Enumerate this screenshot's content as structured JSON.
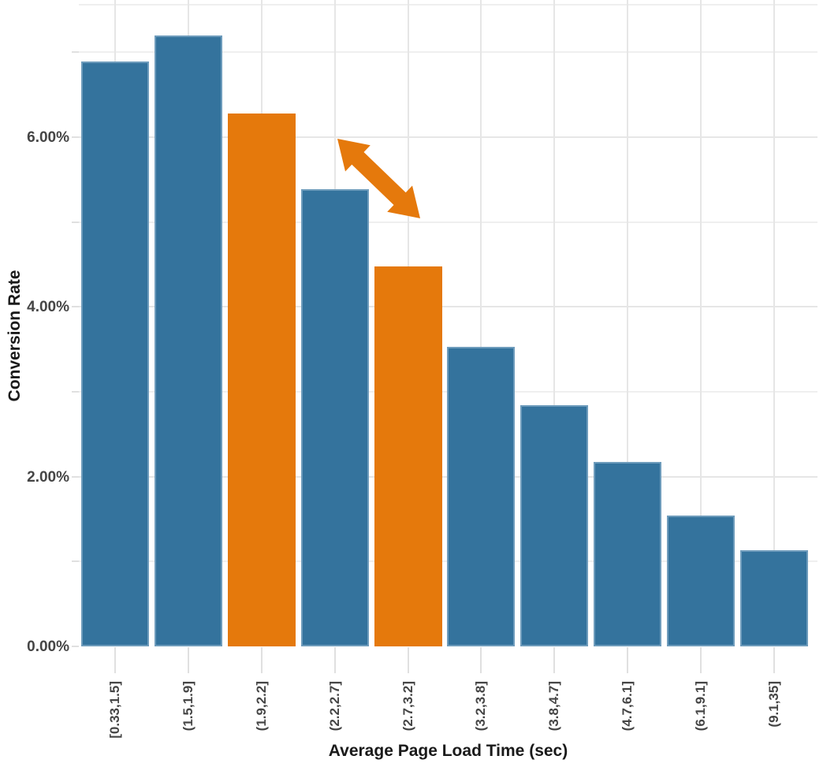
{
  "chart_data": {
    "type": "bar",
    "title": "",
    "xlabel": "Average Page Load Time (sec)",
    "ylabel": "Conversion Rate",
    "categories": [
      "[0.33,1.5]",
      "(1.5,1.9]",
      "(1.9,2.2]",
      "(2.2,2.7]",
      "(2.7,3.2]",
      "(3.2,3.8]",
      "(3.8,4.7]",
      "(4.7,6.1]",
      "(6.1,9.1]",
      "(9.1,35]"
    ],
    "series": [
      {
        "name": "Conversion Rate",
        "values": [
          6.89,
          7.2,
          6.28,
          5.39,
          4.48,
          3.53,
          2.84,
          2.17,
          1.54,
          1.13
        ],
        "unit": "percent"
      }
    ],
    "highlighted_indices": [
      2,
      4
    ],
    "y_axis": {
      "tick_labels": [
        "0.00%",
        "2.00%",
        "4.00%",
        "6.00%"
      ],
      "tick_values": [
        0,
        2,
        4,
        6
      ],
      "minor_tick_values": [
        1,
        3,
        5,
        7
      ],
      "ylim": [
        0,
        7.6
      ]
    },
    "x_axis": {
      "tick_label_rotation_deg": -90
    },
    "grid": "on",
    "legend_position": "none",
    "annotation": {
      "type": "double_headed_arrow",
      "between_categories": [
        "(1.9,2.2]",
        "(2.7,3.2]"
      ],
      "color": "#E5790C"
    },
    "colors": {
      "bar": "#34739D",
      "bar_border": "#6E9CBC",
      "highlight": "#E5790C",
      "grid_major": "#E6E6E6",
      "grid_minor": "#EFEFEF",
      "tick_mark": "#E0E0E0",
      "tick_label_text": "#454545",
      "axis_title_text": "#1A1A1A",
      "background": "#FFFFFF"
    }
  }
}
